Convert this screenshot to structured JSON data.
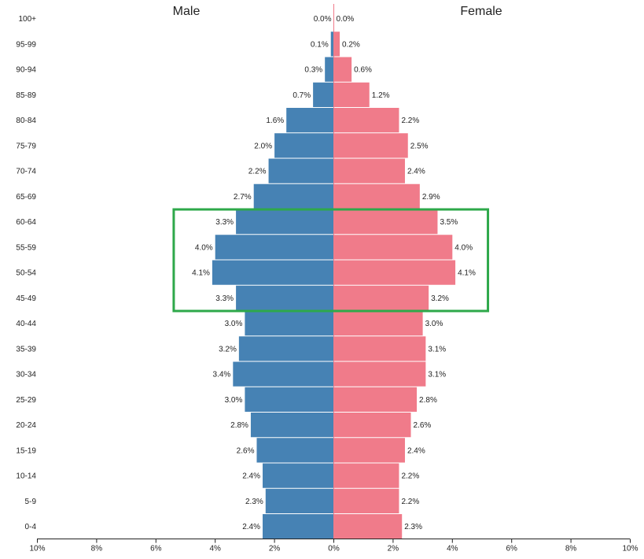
{
  "chart_data": {
    "type": "bar",
    "orientation": "horizontal",
    "layout": "population-pyramid",
    "categories": [
      "100+",
      "95-99",
      "90-94",
      "85-89",
      "80-84",
      "75-79",
      "70-74",
      "65-69",
      "60-64",
      "55-59",
      "50-54",
      "45-49",
      "40-44",
      "35-39",
      "30-34",
      "25-29",
      "20-24",
      "15-19",
      "10-14",
      "5-9",
      "0-4"
    ],
    "series": [
      {
        "name": "Male",
        "color": "#4682b4",
        "values": [
          0.0,
          0.1,
          0.3,
          0.7,
          1.6,
          2.0,
          2.2,
          2.7,
          3.3,
          4.0,
          4.1,
          3.3,
          3.0,
          3.2,
          3.4,
          3.0,
          2.8,
          2.6,
          2.4,
          2.3,
          2.4
        ],
        "labels": [
          "0.0%",
          "0.1%",
          "0.3%",
          "0.7%",
          "1.6%",
          "2.0%",
          "2.2%",
          "2.7%",
          "3.3%",
          "4.0%",
          "4.1%",
          "3.3%",
          "3.0%",
          "3.2%",
          "3.4%",
          "3.0%",
          "2.8%",
          "2.6%",
          "2.4%",
          "2.3%",
          "2.4%"
        ]
      },
      {
        "name": "Female",
        "color": "#f07b8a",
        "values": [
          0.0,
          0.2,
          0.6,
          1.2,
          2.2,
          2.5,
          2.4,
          2.9,
          3.5,
          4.0,
          4.1,
          3.2,
          3.0,
          3.1,
          3.1,
          2.8,
          2.6,
          2.4,
          2.2,
          2.2,
          2.3
        ],
        "labels": [
          "0.0%",
          "0.2%",
          "0.6%",
          "1.2%",
          "2.2%",
          "2.5%",
          "2.4%",
          "2.9%",
          "3.5%",
          "4.0%",
          "4.1%",
          "3.2%",
          "3.0%",
          "3.1%",
          "3.1%",
          "2.8%",
          "2.6%",
          "2.4%",
          "2.2%",
          "2.2%",
          "2.3%"
        ]
      }
    ],
    "x_ticks": [
      10,
      8,
      6,
      4,
      2,
      0,
      2,
      4,
      6,
      8,
      10
    ],
    "x_tick_labels": [
      "10%",
      "8%",
      "6%",
      "4%",
      "2%",
      "0%",
      "2%",
      "4%",
      "6%",
      "8%",
      "10%"
    ],
    "xlim": [
      -10,
      10
    ],
    "grid": false,
    "highlight": {
      "categories": [
        "60-64",
        "55-59",
        "50-54",
        "45-49"
      ],
      "x_range": [
        -5.4,
        5.2
      ],
      "color": "#2ea84a"
    }
  }
}
